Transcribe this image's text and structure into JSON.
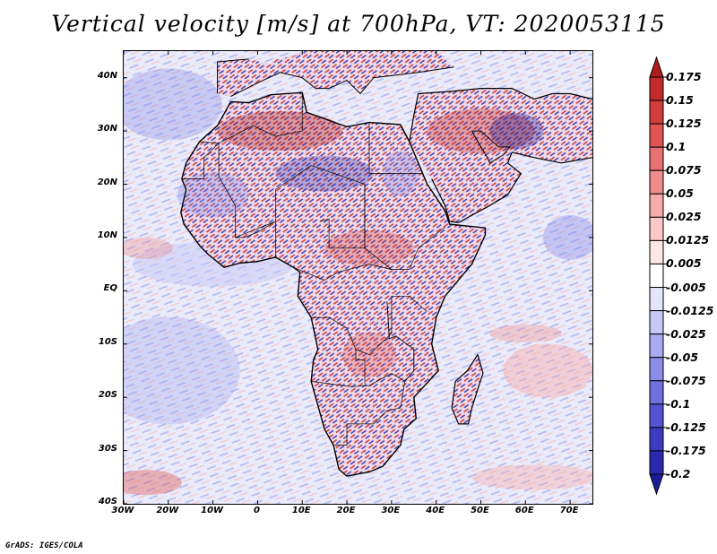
{
  "title": "Vertical velocity [m/s] at 700hPa, VT: 2020053115",
  "credit": "GrADS: IGES/COLA",
  "map": {
    "lat_labels": [
      "40N",
      "30N",
      "20N",
      "10N",
      "EQ",
      "10S",
      "20S",
      "30S",
      "40S"
    ],
    "lat_values": [
      40,
      30,
      20,
      10,
      0,
      -10,
      -20,
      -30,
      -40
    ],
    "lon_labels": [
      "30W",
      "20W",
      "10W",
      "0",
      "10E",
      "20E",
      "30E",
      "40E",
      "50E",
      "60E",
      "70E"
    ],
    "lon_values": [
      -30,
      -20,
      -10,
      0,
      10,
      20,
      30,
      40,
      50,
      60,
      70
    ],
    "lon_range": [
      -30,
      75
    ],
    "lat_range": [
      -40,
      45
    ]
  },
  "colorbar": {
    "levels": [
      "0.175",
      "0.15",
      "0.125",
      "0.1",
      "0.075",
      "0.05",
      "0.025",
      "0.0125",
      "0.005",
      "-0.005",
      "-0.0125",
      "-0.025",
      "-0.05",
      "-0.075",
      "-0.1",
      "-0.125",
      "-0.175",
      "-0.2"
    ],
    "colors": [
      "#b01c1c",
      "#c32a2a",
      "#d23c3c",
      "#e05454",
      "#e87070",
      "#f08c8c",
      "#f6aaaa",
      "#fbc8c8",
      "#fde6e6",
      "#ffffff",
      "#e4e4fb",
      "#c8c8f6",
      "#aaaaf0",
      "#8c8ce8",
      "#7070e0",
      "#5454d2",
      "#3c3cc3",
      "#2a2ab0",
      "#1c1c98"
    ]
  }
}
